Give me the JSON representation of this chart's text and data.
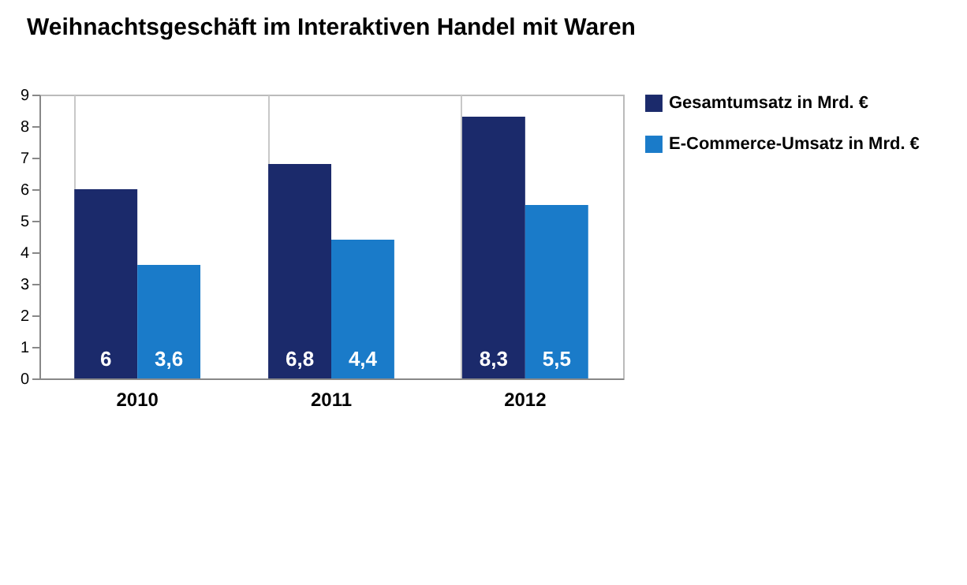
{
  "chart_data": {
    "type": "bar",
    "title": "Weihnachtsgeschäft im Interaktiven Handel mit Waren",
    "categories": [
      "2010",
      "2011",
      "2012"
    ],
    "series": [
      {
        "name": "Gesamtumsatz in Mrd. €",
        "color": "#1b2a6b",
        "values": [
          6,
          6.8,
          8.3
        ],
        "value_labels": [
          "6",
          "6,8",
          "8,3"
        ]
      },
      {
        "name": "E-Commerce-Umsatz in Mrd. €",
        "color": "#1a7bc9",
        "values": [
          3.6,
          4.4,
          5.5
        ],
        "value_labels": [
          "3,6",
          "4,4",
          "5,5"
        ]
      }
    ],
    "ylim": [
      0,
      9
    ],
    "yticks": [
      0,
      1,
      2,
      3,
      4,
      5,
      6,
      7,
      8,
      9
    ],
    "grid": "x",
    "legend": "right"
  }
}
